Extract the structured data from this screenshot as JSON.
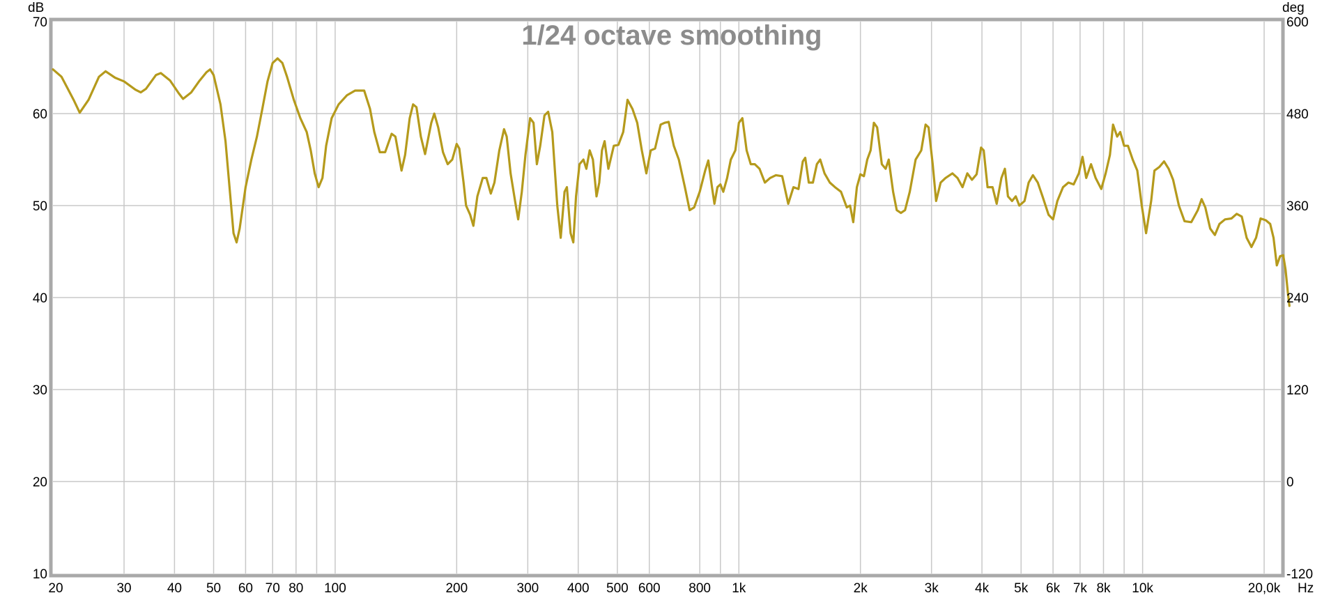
{
  "chart_data": {
    "type": "line",
    "title": "1/24 octave smoothing",
    "x_unit": "Hz",
    "y_left_unit": "dB",
    "y_right_unit": "deg",
    "x_scale": "log",
    "xlim": [
      20,
      22000
    ],
    "ylim": [
      10,
      70
    ],
    "y_right_lim": [
      -120,
      600
    ],
    "grid": true,
    "x_ticks": [
      {
        "value": 20,
        "label": "20"
      },
      {
        "value": 30,
        "label": "30"
      },
      {
        "value": 40,
        "label": "40"
      },
      {
        "value": 50,
        "label": "50"
      },
      {
        "value": 60,
        "label": "60"
      },
      {
        "value": 70,
        "label": "70"
      },
      {
        "value": 80,
        "label": "80"
      },
      {
        "value": 100,
        "label": "100"
      },
      {
        "value": 200,
        "label": "200"
      },
      {
        "value": 300,
        "label": "300"
      },
      {
        "value": 400,
        "label": "400"
      },
      {
        "value": 500,
        "label": "500"
      },
      {
        "value": 600,
        "label": "600"
      },
      {
        "value": 800,
        "label": "800"
      },
      {
        "value": 1000,
        "label": "1k"
      },
      {
        "value": 2000,
        "label": "2k"
      },
      {
        "value": 3000,
        "label": "3k"
      },
      {
        "value": 4000,
        "label": "4k"
      },
      {
        "value": 5000,
        "label": "5k"
      },
      {
        "value": 6000,
        "label": "6k"
      },
      {
        "value": 7000,
        "label": "7k"
      },
      {
        "value": 8000,
        "label": "8k"
      },
      {
        "value": 10000,
        "label": "10k"
      },
      {
        "value": 20000,
        "label": "20,0k"
      }
    ],
    "x_minor_grid": [
      90,
      900,
      9000
    ],
    "y_ticks": [
      {
        "value": 10,
        "label": "10"
      },
      {
        "value": 20,
        "label": "20"
      },
      {
        "value": 30,
        "label": "30"
      },
      {
        "value": 40,
        "label": "40"
      },
      {
        "value": 50,
        "label": "50"
      },
      {
        "value": 60,
        "label": "60"
      },
      {
        "value": 70,
        "label": "70"
      }
    ],
    "y_right_ticks": [
      {
        "value": -120,
        "label": "-120"
      },
      {
        "value": 0,
        "label": "0"
      },
      {
        "value": 120,
        "label": "120"
      },
      {
        "value": 240,
        "label": "240"
      },
      {
        "value": 360,
        "label": "360"
      },
      {
        "value": 480,
        "label": "480"
      },
      {
        "value": 600,
        "label": "600"
      }
    ],
    "series": [
      {
        "color": "#b59a1c",
        "points": [
          [
            20,
            64.8
          ],
          [
            21,
            64.0
          ],
          [
            22.5,
            61.5
          ],
          [
            23.3,
            60.1
          ],
          [
            24.5,
            61.5
          ],
          [
            26,
            64.0
          ],
          [
            27,
            64.6
          ],
          [
            28.5,
            63.9
          ],
          [
            30,
            63.5
          ],
          [
            32,
            62.6
          ],
          [
            33,
            62.3
          ],
          [
            34,
            62.7
          ],
          [
            36,
            64.2
          ],
          [
            37,
            64.4
          ],
          [
            39,
            63.6
          ],
          [
            41,
            62.2
          ],
          [
            42,
            61.6
          ],
          [
            44,
            62.3
          ],
          [
            46,
            63.5
          ],
          [
            48,
            64.5
          ],
          [
            49,
            64.8
          ],
          [
            50,
            64.2
          ],
          [
            52,
            61.0
          ],
          [
            53.5,
            57.0
          ],
          [
            55,
            51.0
          ],
          [
            56,
            47.0
          ],
          [
            57,
            46.0
          ],
          [
            58,
            47.5
          ],
          [
            60,
            52.0
          ],
          [
            62,
            55.0
          ],
          [
            64,
            57.5
          ],
          [
            66,
            60.5
          ],
          [
            68,
            63.5
          ],
          [
            70,
            65.5
          ],
          [
            72,
            66.0
          ],
          [
            74,
            65.5
          ],
          [
            76,
            64.0
          ],
          [
            79,
            61.5
          ],
          [
            82,
            59.5
          ],
          [
            85,
            58.0
          ],
          [
            87,
            56.0
          ],
          [
            89,
            53.5
          ],
          [
            91,
            52.0
          ],
          [
            93,
            53.0
          ],
          [
            95,
            56.5
          ],
          [
            98,
            59.5
          ],
          [
            102,
            61.0
          ],
          [
            107,
            62.0
          ],
          [
            112,
            62.5
          ],
          [
            118,
            62.5
          ],
          [
            122,
            60.5
          ],
          [
            125,
            58.0
          ],
          [
            129,
            55.8
          ],
          [
            133,
            55.8
          ],
          [
            138,
            57.8
          ],
          [
            141,
            57.5
          ],
          [
            146,
            53.8
          ],
          [
            149,
            55.5
          ],
          [
            153,
            59.5
          ],
          [
            156,
            61.0
          ],
          [
            159,
            60.7
          ],
          [
            163,
            57.5
          ],
          [
            167,
            55.6
          ],
          [
            173,
            59.0
          ],
          [
            176,
            60.0
          ],
          [
            180,
            58.5
          ],
          [
            185,
            55.8
          ],
          [
            190,
            54.5
          ],
          [
            195,
            55.0
          ],
          [
            200,
            56.7
          ],
          [
            203,
            56.2
          ],
          [
            208,
            52.5
          ],
          [
            211,
            50.0
          ],
          [
            216,
            49.0
          ],
          [
            220,
            47.8
          ],
          [
            225,
            51.0
          ],
          [
            232,
            53.0
          ],
          [
            237,
            53.0
          ],
          [
            243,
            51.3
          ],
          [
            248,
            52.5
          ],
          [
            255,
            56.0
          ],
          [
            262,
            58.3
          ],
          [
            266,
            57.5
          ],
          [
            272,
            53.5
          ],
          [
            279,
            50.5
          ],
          [
            284,
            48.5
          ],
          [
            290,
            51.5
          ],
          [
            296,
            55.5
          ],
          [
            304,
            59.5
          ],
          [
            310,
            59.0
          ],
          [
            316,
            54.5
          ],
          [
            322,
            56.5
          ],
          [
            330,
            59.8
          ],
          [
            337,
            60.2
          ],
          [
            345,
            58.0
          ],
          [
            355,
            50.0
          ],
          [
            362,
            46.5
          ],
          [
            370,
            51.5
          ],
          [
            375,
            52.0
          ],
          [
            383,
            47.0
          ],
          [
            389,
            46.0
          ],
          [
            395,
            51.0
          ],
          [
            403,
            54.5
          ],
          [
            412,
            55.0
          ],
          [
            419,
            54.0
          ],
          [
            427,
            56.0
          ],
          [
            435,
            55.0
          ],
          [
            444,
            51.0
          ],
          [
            451,
            52.5
          ],
          [
            458,
            56.0
          ],
          [
            465,
            57.0
          ],
          [
            475,
            54.0
          ],
          [
            490,
            56.5
          ],
          [
            503,
            56.6
          ],
          [
            517,
            58.0
          ],
          [
            530,
            61.5
          ],
          [
            545,
            60.5
          ],
          [
            560,
            59.0
          ],
          [
            575,
            56.0
          ],
          [
            590,
            53.5
          ],
          [
            605,
            56.0
          ],
          [
            620,
            56.2
          ],
          [
            640,
            58.8
          ],
          [
            655,
            59.0
          ],
          [
            670,
            59.1
          ],
          [
            690,
            56.5
          ],
          [
            710,
            55.0
          ],
          [
            735,
            52.0
          ],
          [
            755,
            49.5
          ],
          [
            775,
            49.8
          ],
          [
            800,
            51.5
          ],
          [
            825,
            53.8
          ],
          [
            840,
            54.9
          ],
          [
            858,
            52.0
          ],
          [
            870,
            50.2
          ],
          [
            885,
            52.0
          ],
          [
            900,
            52.3
          ],
          [
            915,
            51.5
          ],
          [
            935,
            53.0
          ],
          [
            955,
            55.0
          ],
          [
            980,
            56.0
          ],
          [
            1000,
            59.0
          ],
          [
            1020,
            59.5
          ],
          [
            1045,
            56.0
          ],
          [
            1070,
            54.5
          ],
          [
            1095,
            54.5
          ],
          [
            1125,
            54.0
          ],
          [
            1160,
            52.5
          ],
          [
            1195,
            53.0
          ],
          [
            1235,
            53.3
          ],
          [
            1280,
            53.2
          ],
          [
            1325,
            50.2
          ],
          [
            1365,
            52.0
          ],
          [
            1405,
            51.8
          ],
          [
            1440,
            54.8
          ],
          [
            1460,
            55.2
          ],
          [
            1490,
            52.5
          ],
          [
            1525,
            52.5
          ],
          [
            1560,
            54.5
          ],
          [
            1590,
            55.0
          ],
          [
            1630,
            53.5
          ],
          [
            1680,
            52.5
          ],
          [
            1730,
            52.0
          ],
          [
            1790,
            51.5
          ],
          [
            1850,
            49.8
          ],
          [
            1885,
            50.0
          ],
          [
            1920,
            48.2
          ],
          [
            1960,
            52.0
          ],
          [
            2000,
            53.4
          ],
          [
            2040,
            53.2
          ],
          [
            2080,
            55.0
          ],
          [
            2120,
            56.0
          ],
          [
            2160,
            59.0
          ],
          [
            2200,
            58.5
          ],
          [
            2260,
            54.5
          ],
          [
            2310,
            54.0
          ],
          [
            2350,
            55.0
          ],
          [
            2410,
            51.5
          ],
          [
            2460,
            49.5
          ],
          [
            2520,
            49.2
          ],
          [
            2580,
            49.5
          ],
          [
            2650,
            51.5
          ],
          [
            2740,
            55.0
          ],
          [
            2830,
            56.0
          ],
          [
            2900,
            58.8
          ],
          [
            2950,
            58.5
          ],
          [
            3020,
            54.5
          ],
          [
            3080,
            50.5
          ],
          [
            3160,
            52.5
          ],
          [
            3250,
            53.0
          ],
          [
            3380,
            53.5
          ],
          [
            3480,
            53.0
          ],
          [
            3580,
            52.0
          ],
          [
            3680,
            53.5
          ],
          [
            3780,
            52.8
          ],
          [
            3880,
            53.4
          ],
          [
            3980,
            56.3
          ],
          [
            4040,
            56.0
          ],
          [
            4130,
            52.0
          ],
          [
            4250,
            52.0
          ],
          [
            4350,
            50.2
          ],
          [
            4470,
            53.0
          ],
          [
            4560,
            54.0
          ],
          [
            4640,
            51.0
          ],
          [
            4750,
            50.5
          ],
          [
            4850,
            51.0
          ],
          [
            4950,
            50.0
          ],
          [
            5100,
            50.5
          ],
          [
            5220,
            52.5
          ],
          [
            5350,
            53.3
          ],
          [
            5500,
            52.5
          ],
          [
            5650,
            51.0
          ],
          [
            5850,
            49.0
          ],
          [
            6000,
            48.5
          ],
          [
            6150,
            50.5
          ],
          [
            6350,
            52.0
          ],
          [
            6550,
            52.5
          ],
          [
            6750,
            52.3
          ],
          [
            6950,
            53.5
          ],
          [
            7100,
            55.3
          ],
          [
            7250,
            53.0
          ],
          [
            7450,
            54.5
          ],
          [
            7650,
            53.0
          ],
          [
            7900,
            51.8
          ],
          [
            8100,
            53.5
          ],
          [
            8300,
            55.5
          ],
          [
            8450,
            58.8
          ],
          [
            8650,
            57.5
          ],
          [
            8800,
            58.0
          ],
          [
            9000,
            56.5
          ],
          [
            9200,
            56.5
          ],
          [
            9450,
            55.0
          ],
          [
            9700,
            53.8
          ],
          [
            9950,
            50.0
          ],
          [
            10200,
            47.0
          ],
          [
            10500,
            50.5
          ],
          [
            10700,
            53.8
          ],
          [
            11000,
            54.2
          ],
          [
            11300,
            54.8
          ],
          [
            11600,
            54.0
          ],
          [
            11900,
            52.8
          ],
          [
            12300,
            50.0
          ],
          [
            12700,
            48.3
          ],
          [
            13200,
            48.2
          ],
          [
            13700,
            49.5
          ],
          [
            14000,
            50.7
          ],
          [
            14300,
            49.8
          ],
          [
            14700,
            47.5
          ],
          [
            15100,
            46.8
          ],
          [
            15500,
            48.0
          ],
          [
            16000,
            48.5
          ],
          [
            16600,
            48.6
          ],
          [
            17100,
            49.1
          ],
          [
            17600,
            48.8
          ],
          [
            18100,
            46.5
          ],
          [
            18600,
            45.5
          ],
          [
            19100,
            46.5
          ],
          [
            19600,
            48.6
          ],
          [
            20200,
            48.4
          ],
          [
            20700,
            48.0
          ],
          [
            21100,
            46.5
          ],
          [
            21500,
            43.5
          ],
          [
            21900,
            44.5
          ],
          [
            22300,
            44.6
          ],
          [
            22600,
            43.0
          ],
          [
            22900,
            40.5
          ],
          [
            23100,
            39.1
          ]
        ]
      }
    ]
  }
}
